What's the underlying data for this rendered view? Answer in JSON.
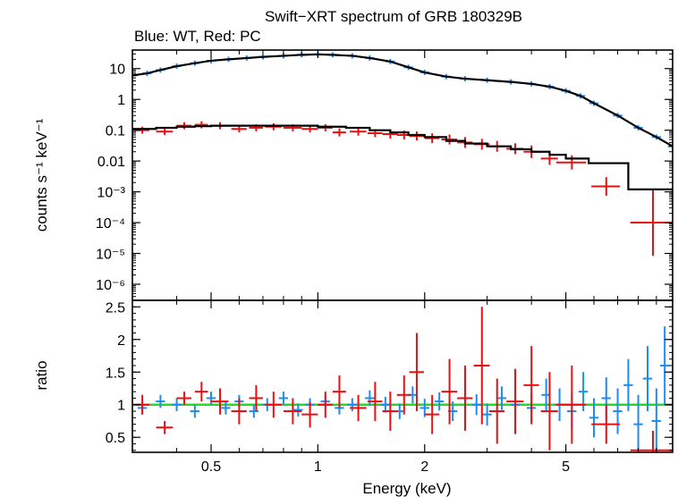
{
  "chart_data": {
    "type": "scatter",
    "title": "Swift−XRT spectrum of GRB 180329B",
    "subtitle": "Blue: WT, Red: PC",
    "xlabel": "Energy (keV)",
    "xscale": "log",
    "xlim": [
      0.3,
      10
    ],
    "xtick_labels": [
      "0.5",
      "1",
      "2",
      "5"
    ],
    "xticks": [
      0.5,
      1,
      2,
      5
    ],
    "colors": {
      "wt": "#1e8cf0",
      "pc": "#e81010",
      "model": "#000000",
      "unity": "#22dd22"
    },
    "panels": [
      {
        "name": "spectrum",
        "ylabel": "counts s⁻¹ keV⁻¹",
        "yscale": "log",
        "ylim": [
          3e-07,
          40
        ],
        "ytick_values": [
          1e-06,
          1e-05,
          0.0001,
          0.001,
          0.01,
          0.1,
          1,
          10
        ],
        "ytick_labels": [
          "10⁻⁶",
          "10⁻⁵",
          "10⁻⁴",
          "10⁻³",
          "0.01",
          "0.1",
          "1",
          "10"
        ],
        "series": [
          {
            "key": "wt",
            "x": [
              0.3,
              0.33,
              0.36,
              0.4,
              0.45,
              0.5,
              0.56,
              0.63,
              0.7,
              0.8,
              0.9,
              1.0,
              1.1,
              1.25,
              1.4,
              1.6,
              1.8,
              2.0,
              2.3,
              2.6,
              3.0,
              3.5,
              4.0,
              4.5,
              5.0,
              5.5,
              6.0,
              7.0,
              8.0,
              9.0,
              10.0
            ],
            "y": [
              6,
              7,
              9,
              12,
              15,
              18,
              20,
              22,
              24,
              26,
              28,
              29,
              28,
              26,
              22,
              17,
              11,
              7.5,
              5.5,
              4.7,
              4.2,
              3.7,
              3.2,
              2.6,
              1.9,
              1.3,
              0.75,
              0.3,
              0.12,
              0.06,
              0.03
            ]
          },
          {
            "key": "pc",
            "x": [
              0.32,
              0.37,
              0.42,
              0.47,
              0.53,
              0.6,
              0.67,
              0.75,
              0.85,
              0.95,
              1.05,
              1.15,
              1.3,
              1.45,
              1.6,
              1.75,
              1.9,
              2.1,
              2.35,
              2.6,
              2.9,
              3.2,
              3.6,
              4.0,
              4.5,
              5.2,
              6.5,
              8.8
            ],
            "y": [
              0.1,
              0.09,
              0.14,
              0.15,
              0.14,
              0.11,
              0.12,
              0.13,
              0.12,
              0.11,
              0.12,
              0.085,
              0.09,
              0.08,
              0.075,
              0.07,
              0.065,
              0.055,
              0.05,
              0.04,
              0.035,
              0.03,
              0.025,
              0.02,
              0.012,
              0.009,
              0.0015,
              0.0001
            ],
            "yerr_factor": [
              1.3,
              1.3,
              1.3,
              1.3,
              1.3,
              1.3,
              1.3,
              1.3,
              1.3,
              1.3,
              1.3,
              1.35,
              1.35,
              1.35,
              1.4,
              1.4,
              1.4,
              1.45,
              1.45,
              1.5,
              1.5,
              1.5,
              1.5,
              1.6,
              1.6,
              1.7,
              2.0,
              12
            ],
            "xhalf": [
              0.015,
              0.02,
              0.02,
              0.02,
              0.03,
              0.03,
              0.03,
              0.04,
              0.05,
              0.05,
              0.05,
              0.05,
              0.07,
              0.07,
              0.08,
              0.08,
              0.09,
              0.1,
              0.12,
              0.13,
              0.15,
              0.16,
              0.2,
              0.2,
              0.25,
              0.5,
              0.6,
              1.2
            ]
          }
        ],
        "models": [
          {
            "key": "wt",
            "x": [
              0.3,
              0.33,
              0.36,
              0.4,
              0.45,
              0.5,
              0.56,
              0.63,
              0.7,
              0.8,
              0.9,
              1.0,
              1.1,
              1.25,
              1.4,
              1.6,
              1.8,
              2.0,
              2.3,
              2.6,
              3.0,
              3.5,
              4.0,
              4.5,
              5.0,
              5.5,
              6.0,
              7.0,
              8.0,
              9.0,
              10.0
            ],
            "y": [
              6,
              7,
              9,
              12,
              15,
              18,
              20,
              22,
              24,
              26,
              28,
              29,
              28,
              26,
              22,
              17,
              11,
              7.5,
              5.5,
              4.7,
              4.2,
              3.7,
              3.2,
              2.6,
              1.9,
              1.3,
              0.75,
              0.3,
              0.12,
              0.06,
              0.03
            ]
          },
          {
            "key": "pc",
            "x": [
              0.3,
              0.35,
              0.4,
              0.45,
              0.5,
              0.6,
              0.7,
              0.8,
              1.0,
              1.2,
              1.4,
              1.6,
              1.8,
              2.0,
              2.3,
              2.6,
              3.0,
              3.5,
              4.0,
              4.5,
              5.0,
              5.8,
              7.5,
              10.0
            ],
            "y": [
              0.11,
              0.12,
              0.13,
              0.135,
              0.14,
              0.14,
              0.14,
              0.14,
              0.13,
              0.12,
              0.1,
              0.085,
              0.07,
              0.06,
              0.045,
              0.037,
              0.03,
              0.024,
              0.02,
              0.016,
              0.012,
              0.0085,
              0.0012,
              0.0004
            ],
            "step": true
          }
        ]
      },
      {
        "name": "ratio",
        "ylabel": "ratio",
        "yscale": "linear",
        "ylim": [
          0.27,
          2.6
        ],
        "ytick_values": [
          0.5,
          1,
          1.5,
          2,
          2.5
        ],
        "ytick_labels": [
          "0.5",
          "1",
          "1.5",
          "2",
          "2.5"
        ],
        "reference_line": 1,
        "series": [
          {
            "key": "wt",
            "x": [
              0.32,
              0.36,
              0.4,
              0.45,
              0.5,
              0.55,
              0.6,
              0.66,
              0.72,
              0.8,
              0.88,
              0.95,
              1.05,
              1.15,
              1.25,
              1.4,
              1.55,
              1.7,
              1.85,
              2.0,
              2.2,
              2.4,
              2.6,
              2.8,
              3.0,
              3.3,
              3.6,
              4.0,
              4.4,
              4.8,
              5.2,
              5.6,
              6.0,
              6.5,
              7.0,
              7.5,
              8.0,
              8.5,
              9.0,
              9.5
            ],
            "y": [
              0.95,
              1.05,
              1.0,
              0.9,
              1.1,
              0.95,
              1.05,
              0.9,
              1.0,
              1.1,
              0.92,
              1.0,
              1.05,
              0.95,
              1.0,
              1.1,
              1.0,
              0.9,
              1.15,
              0.95,
              1.05,
              0.9,
              1.1,
              1.0,
              0.85,
              1.1,
              1.0,
              0.95,
              1.15,
              1.0,
              0.9,
              1.2,
              0.8,
              1.1,
              0.9,
              1.3,
              0.7,
              1.4,
              0.75,
              1.6
            ],
            "yerr": [
              0.1,
              0.1,
              0.1,
              0.1,
              0.1,
              0.1,
              0.1,
              0.1,
              0.1,
              0.1,
              0.1,
              0.1,
              0.1,
              0.1,
              0.1,
              0.12,
              0.12,
              0.12,
              0.13,
              0.14,
              0.14,
              0.15,
              0.15,
              0.16,
              0.17,
              0.18,
              0.2,
              0.22,
              0.25,
              0.25,
              0.28,
              0.3,
              0.3,
              0.32,
              0.35,
              0.4,
              0.45,
              0.5,
              0.5,
              0.6
            ]
          },
          {
            "key": "pc",
            "x": [
              0.32,
              0.37,
              0.42,
              0.47,
              0.53,
              0.6,
              0.67,
              0.75,
              0.85,
              0.95,
              1.05,
              1.15,
              1.3,
              1.45,
              1.6,
              1.75,
              1.9,
              2.1,
              2.35,
              2.6,
              2.9,
              3.2,
              3.6,
              4.0,
              4.5,
              5.2,
              6.5,
              8.8
            ],
            "y": [
              1.0,
              0.65,
              1.1,
              1.2,
              1.05,
              0.9,
              1.1,
              1.0,
              0.9,
              0.85,
              1.0,
              1.2,
              0.95,
              1.05,
              0.9,
              1.15,
              1.5,
              0.85,
              1.2,
              1.1,
              1.6,
              0.9,
              1.05,
              1.3,
              0.9,
              1.0,
              0.7,
              0.3
            ],
            "yerr": [
              0.15,
              0.1,
              0.1,
              0.15,
              0.2,
              0.2,
              0.2,
              0.2,
              0.2,
              0.2,
              0.2,
              0.25,
              0.2,
              0.3,
              0.3,
              0.3,
              0.6,
              0.3,
              0.5,
              0.5,
              0.9,
              0.5,
              0.5,
              0.6,
              0.6,
              0.6,
              0.3,
              0.3
            ],
            "xhalf": [
              0.015,
              0.02,
              0.02,
              0.02,
              0.03,
              0.03,
              0.03,
              0.04,
              0.05,
              0.05,
              0.05,
              0.05,
              0.07,
              0.07,
              0.08,
              0.08,
              0.09,
              0.1,
              0.12,
              0.13,
              0.15,
              0.16,
              0.2,
              0.2,
              0.25,
              0.5,
              0.6,
              1.2
            ]
          }
        ]
      }
    ]
  }
}
